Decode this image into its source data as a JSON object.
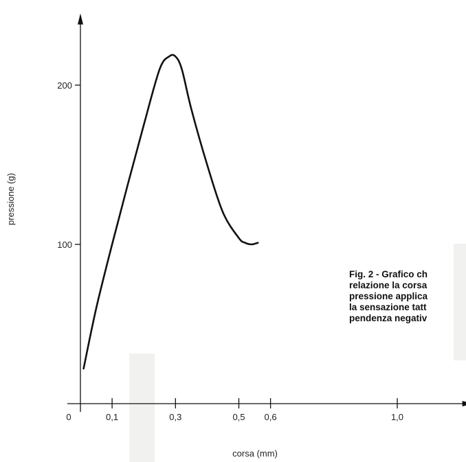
{
  "chart_data": {
    "type": "line",
    "title": "",
    "xlabel": "corsa (mm)",
    "ylabel": "pressione (g)",
    "xlim": [
      0,
      1.24
    ],
    "ylim": [
      0,
      245
    ],
    "x_ticks": [
      {
        "value": 0,
        "label": "0"
      },
      {
        "value": 0.1,
        "label": "0,1"
      },
      {
        "value": 0.3,
        "label": "0,3"
      },
      {
        "value": 0.5,
        "label": "0,5"
      },
      {
        "value": 0.6,
        "label": "0,6"
      },
      {
        "value": 1.0,
        "label": "1,0"
      }
    ],
    "y_ticks": [
      {
        "value": 100,
        "label": "100"
      },
      {
        "value": 200,
        "label": "200"
      }
    ],
    "series": [
      {
        "x": [
          0.01,
          0.05,
          0.1,
          0.15,
          0.2,
          0.25,
          0.28,
          0.3,
          0.32,
          0.35,
          0.4,
          0.45,
          0.5,
          0.52,
          0.54,
          0.56
        ],
        "y": [
          22,
          60,
          100,
          138,
          175,
          210,
          218,
          218,
          210,
          185,
          150,
          120,
          104,
          101,
          100,
          101
        ]
      }
    ],
    "grid": false,
    "legend": "none"
  },
  "caption_lines": [
    "Fig. 2 - Grafico ch",
    "relazione la corsa",
    "pressione applica",
    "la sensazione tatt",
    "pendenza negativ"
  ]
}
